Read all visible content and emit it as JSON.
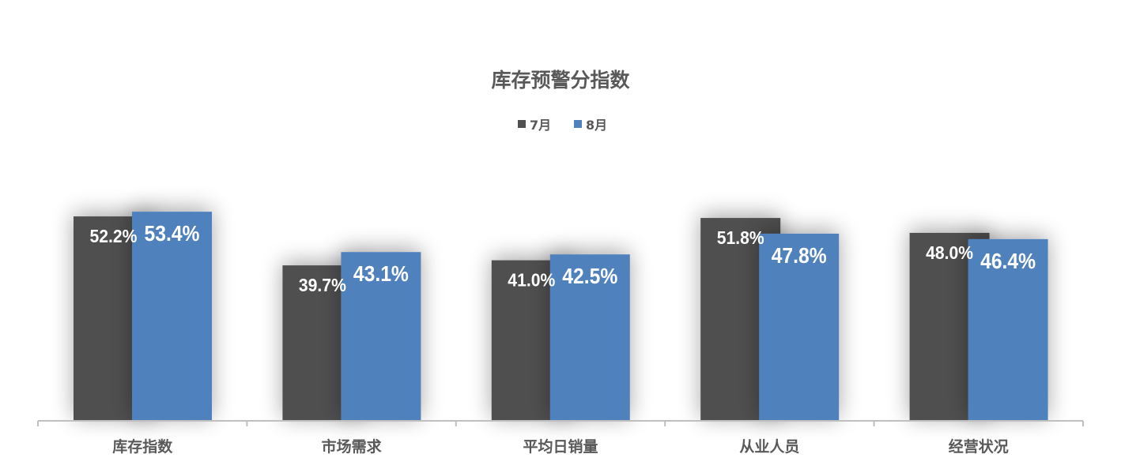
{
  "chart_data": {
    "type": "bar",
    "title": "库存预警分指数",
    "categories": [
      "库存指数",
      "市场需求",
      "平均日销量",
      "从业人员",
      "经营状况"
    ],
    "series": [
      {
        "name": "7月",
        "color": "#505050",
        "values": [
          52.2,
          39.7,
          41.0,
          51.8,
          48.0
        ],
        "labels": [
          "52.2%",
          "39.7%",
          "41.0%",
          "51.8%",
          "48.0%"
        ]
      },
      {
        "name": "8月",
        "color": "#4F81BD",
        "values": [
          53.4,
          43.1,
          42.5,
          47.8,
          46.4
        ],
        "labels": [
          "53.4%",
          "43.1%",
          "42.5%",
          "47.8%",
          "46.4%"
        ]
      }
    ],
    "unit": "%",
    "legend": "top",
    "grid": false,
    "ylim": [
      0,
      60
    ]
  }
}
